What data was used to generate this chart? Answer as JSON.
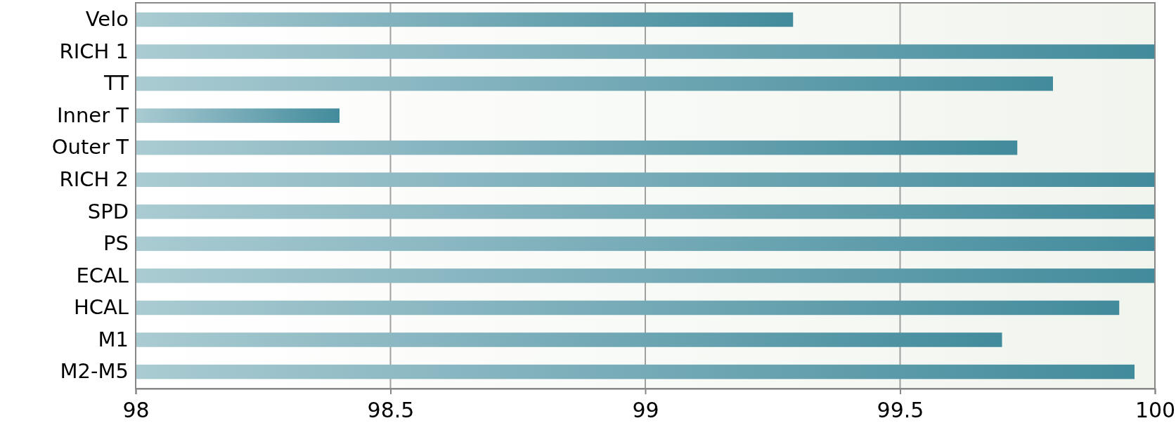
{
  "chart_data": {
    "type": "bar",
    "orientation": "horizontal",
    "categories": [
      "Velo",
      "RICH 1",
      "TT",
      "Inner T",
      "Outer T",
      "RICH 2",
      "SPD",
      "PS",
      "ECAL",
      "HCAL",
      "M1",
      "M2-M5"
    ],
    "values": [
      99.29,
      100,
      99.8,
      98.4,
      99.73,
      100,
      100,
      100,
      100,
      99.93,
      99.7,
      99.96
    ],
    "color": "#428b9c",
    "xlim": [
      98,
      100
    ],
    "xticks": [
      98,
      98.5,
      99,
      99.5,
      100
    ],
    "grid": "x"
  }
}
